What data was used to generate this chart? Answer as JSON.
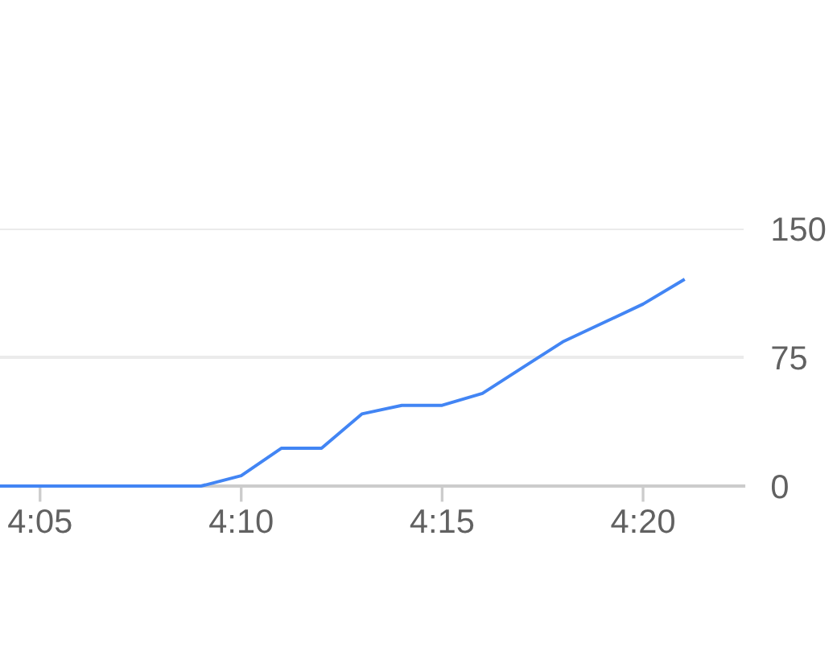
{
  "chart_data": {
    "type": "line",
    "x": [
      4.0667,
      4.0833,
      4.1,
      4.1167,
      4.1333,
      4.15,
      4.1667,
      4.1833,
      4.2,
      4.2167,
      4.2333,
      4.25,
      4.2667,
      4.2833,
      4.3,
      4.3167,
      4.3333,
      4.35
    ],
    "series": [
      {
        "color": "#4285f4",
        "values": [
          0,
          0,
          0,
          0,
          0,
          0,
          6,
          22,
          22,
          42,
          47,
          47,
          54,
          69,
          84,
          95,
          106,
          120
        ]
      }
    ],
    "xlim": [
      4.0667,
      4.375
    ],
    "xticks": [
      {
        "value": 4.0833,
        "label": "4:05"
      },
      {
        "value": 4.1667,
        "label": "4:10"
      },
      {
        "value": 4.25,
        "label": "4:15"
      },
      {
        "value": 4.3333,
        "label": "4:20"
      }
    ],
    "ylim": [
      0,
      150
    ],
    "yticks": [
      0,
      75,
      150
    ],
    "grid": "y",
    "marker": "none",
    "line_style": "solid"
  }
}
